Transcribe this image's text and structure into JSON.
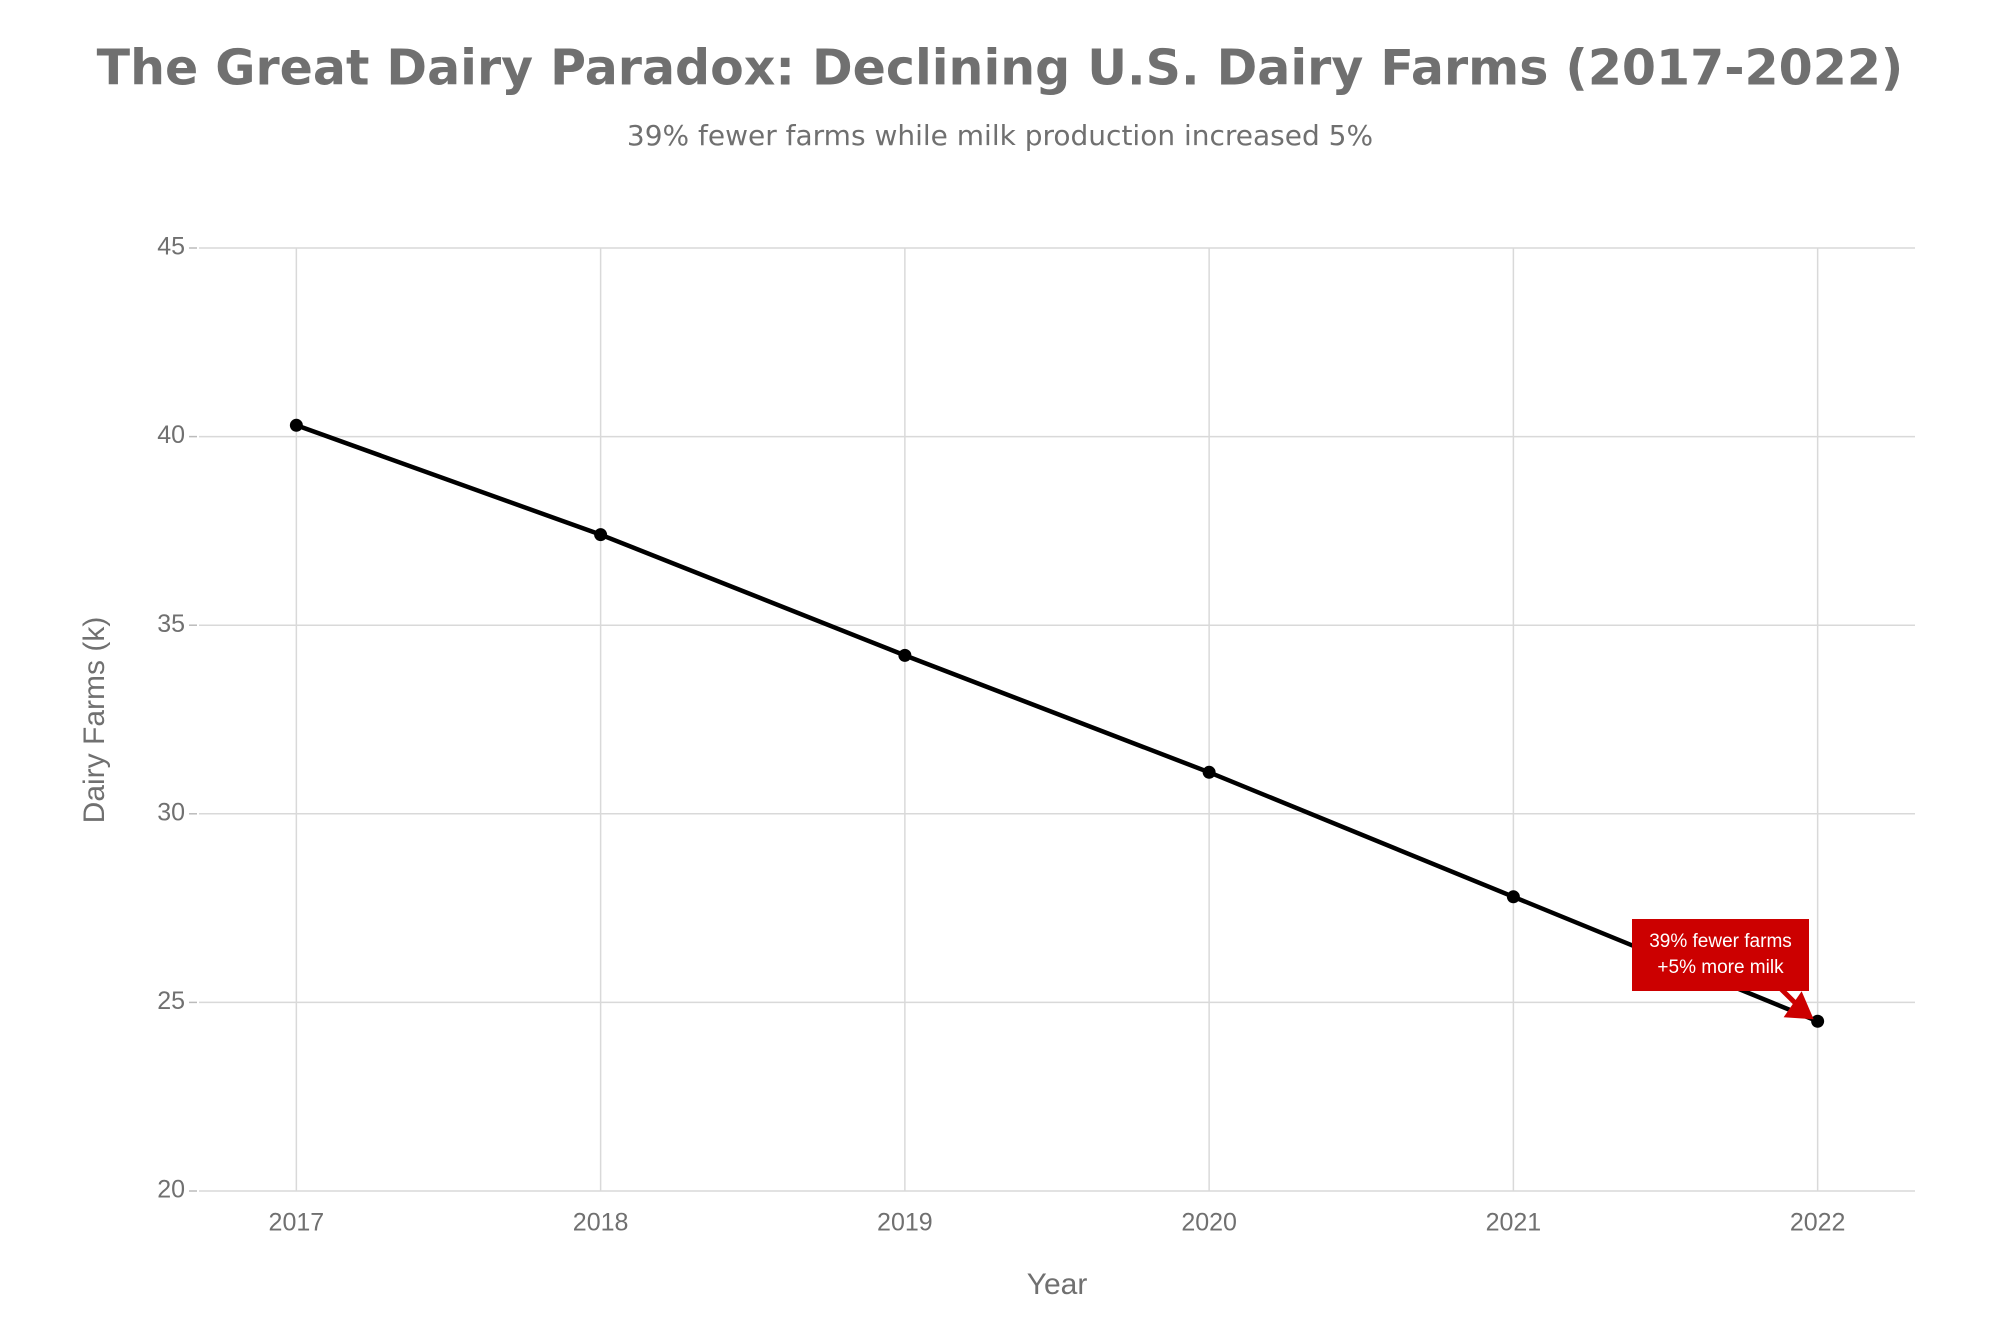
{
  "chart_data": {
    "type": "line",
    "title": "The Great Dairy Paradox: Declining U.S. Dairy Farms (2017-2022)",
    "subtitle": "39% fewer farms while milk production increased 5%",
    "x_label": "Year",
    "y_label": "Dairy Farms (k)",
    "x": [
      2017,
      2018,
      2019,
      2020,
      2021,
      2022
    ],
    "series": [
      {
        "name": "Dairy Farms",
        "color": "#000000",
        "values": [
          40.3,
          37.4,
          34.2,
          31.1,
          27.8,
          24.5
        ]
      }
    ],
    "xlim": [
      2016.68,
      2022.32
    ],
    "xticks": [
      2017,
      2018,
      2019,
      2020,
      2021,
      2022
    ],
    "ylim": [
      20,
      45
    ],
    "yticks": [
      20,
      25,
      30,
      35,
      40,
      45
    ],
    "grid": true,
    "annotation": {
      "lines": [
        "39% fewer farms",
        "+5% more milk"
      ],
      "color": "#cc0000"
    }
  }
}
